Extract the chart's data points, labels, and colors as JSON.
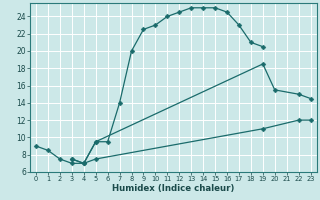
{
  "xlabel": "Humidex (Indice chaleur)",
  "bg_color": "#cce8e8",
  "grid_color": "#b0d0d0",
  "line_color": "#1a6b6b",
  "xlim": [
    -0.5,
    23.5
  ],
  "ylim": [
    6,
    25.5
  ],
  "xticks": [
    0,
    1,
    2,
    3,
    4,
    5,
    6,
    7,
    8,
    9,
    10,
    11,
    12,
    13,
    14,
    15,
    16,
    17,
    18,
    19,
    20,
    21,
    22,
    23
  ],
  "yticks": [
    6,
    8,
    10,
    12,
    14,
    16,
    18,
    20,
    22,
    24
  ],
  "line1_x": [
    0,
    1,
    2,
    3,
    4,
    5,
    6,
    7,
    8,
    9,
    10,
    11,
    12,
    13,
    14,
    15,
    16,
    17,
    18,
    19
  ],
  "line1_y": [
    9.0,
    8.5,
    7.5,
    7.0,
    7.0,
    9.5,
    9.5,
    14.0,
    20.0,
    22.5,
    23.0,
    24.0,
    24.5,
    25.0,
    25.0,
    25.0,
    24.5,
    23.0,
    21.0,
    20.5
  ],
  "line2_x": [
    3,
    4,
    5,
    19,
    20,
    22,
    23
  ],
  "line2_y": [
    7.5,
    7.0,
    9.5,
    18.5,
    15.5,
    15.0,
    14.5
  ],
  "line3_x": [
    3,
    4,
    5,
    19,
    22,
    23
  ],
  "line3_y": [
    7.5,
    7.0,
    7.5,
    11.0,
    12.0,
    12.0
  ]
}
